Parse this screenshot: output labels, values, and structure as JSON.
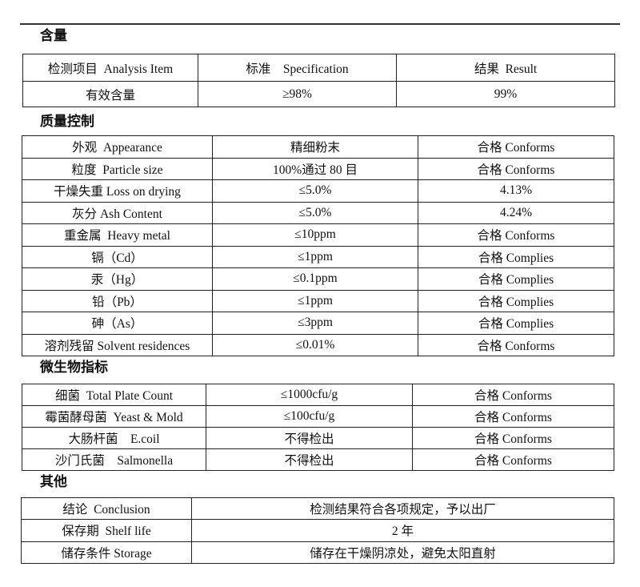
{
  "sections": [
    {
      "title": "含量",
      "rows": [
        [
          "检测项目  Analysis Item",
          "标准    Specification",
          "结果  Result"
        ],
        [
          "有效含量",
          "≥98%",
          "99%"
        ]
      ]
    },
    {
      "title": "质量控制",
      "rows": [
        [
          "外观  Appearance",
          "精细粉末",
          "合格 Conforms"
        ],
        [
          "粒度  Particle size",
          "100%通过 80 目",
          "合格 Conforms"
        ],
        [
          "干燥失重 Loss on drying",
          "≤5.0%",
          "4.13%"
        ],
        [
          "灰分 Ash Content",
          "≤5.0%",
          "4.24%"
        ],
        [
          "重金属  Heavy metal",
          "≤10ppm",
          "合格 Conforms"
        ],
        [
          "镉（Cd）",
          "≤1ppm",
          "合格 Complies"
        ],
        [
          "汞（Hg）",
          "≤0.1ppm",
          "合格 Complies"
        ],
        [
          "铅（Pb）",
          "≤1ppm",
          "合格 Complies"
        ],
        [
          "砷（As）",
          "≤3ppm",
          "合格 Complies"
        ],
        [
          "溶剂残留 Solvent residences",
          "≤0.01%",
          "合格 Conforms"
        ]
      ]
    },
    {
      "title": "微生物指标",
      "rows": [
        [
          "细菌  Total Plate Count",
          "≤1000cfu/g",
          "合格 Conforms"
        ],
        [
          "霉菌酵母菌  Yeast & Mold",
          "≤100cfu/g",
          "合格 Conforms"
        ],
        [
          "大肠杆菌    E.coil",
          "不得检出",
          "合格 Conforms"
        ],
        [
          "沙门氏菌    Salmonella",
          "不得检出",
          "合格 Conforms"
        ]
      ]
    },
    {
      "title": "其他",
      "rows": [
        [
          "结论  Conclusion",
          "检测结果符合各项规定，予以出厂"
        ],
        [
          "保存期  Shelf life",
          "2 年"
        ],
        [
          "储存条件 Storage",
          "储存在干燥阴凉处，避免太阳直射"
        ]
      ]
    }
  ]
}
